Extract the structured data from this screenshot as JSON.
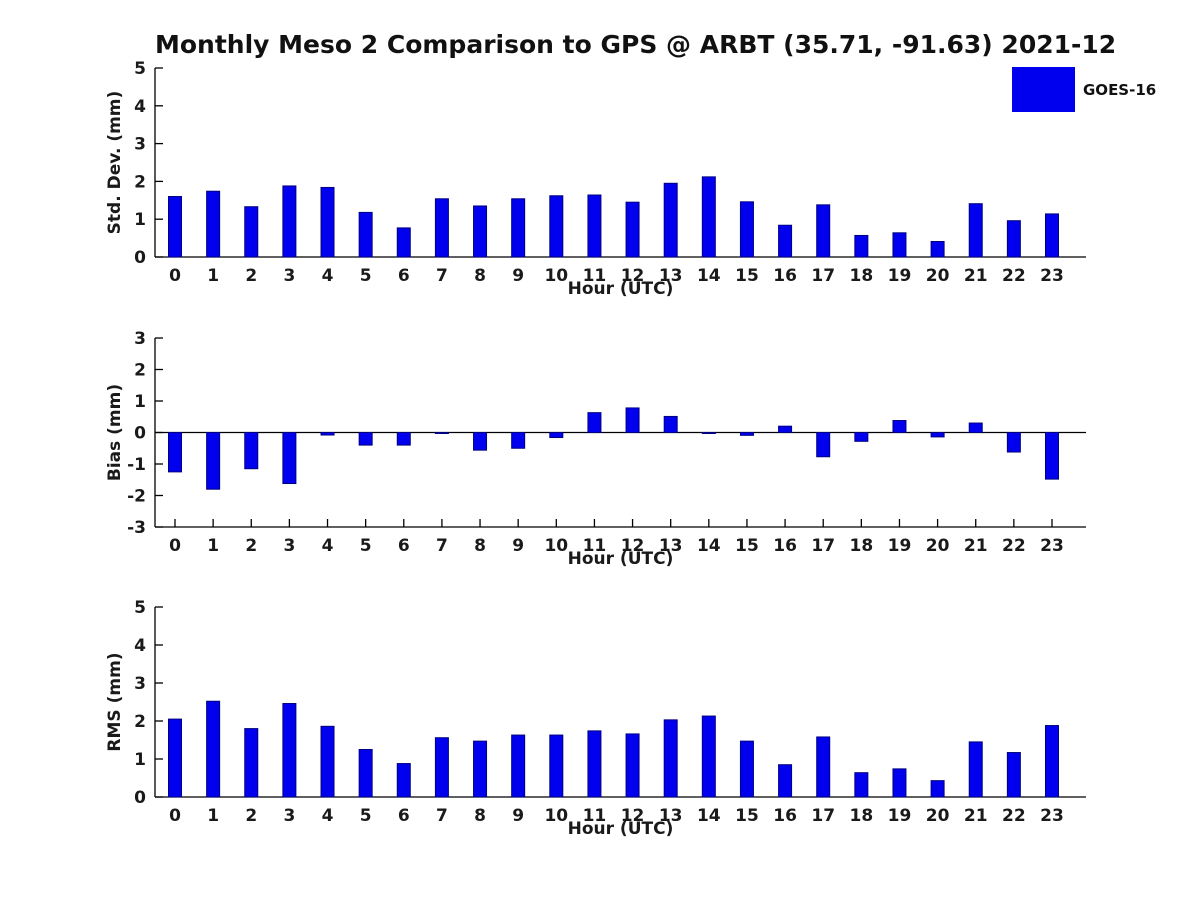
{
  "figure": {
    "title": "Monthly Meso 2 Comparison to GPS @ ARBT (35.71, -91.63) 2021-12",
    "legend": [
      {
        "label": "GOES-16",
        "color": "#0000EE"
      }
    ],
    "series_fill_color": "#0000EE",
    "series_edge_color": "#000080",
    "axis_color": "#000000",
    "text_color": "#1a1a1a"
  },
  "chart_data": [
    {
      "type": "bar",
      "title": "",
      "ylabel": "Std. Dev. (mm)",
      "xlabel": "Hour (UTC)",
      "series_name": "GOES-16",
      "categories": [
        "0",
        "1",
        "2",
        "3",
        "4",
        "5",
        "6",
        "7",
        "8",
        "9",
        "10",
        "11",
        "12",
        "13",
        "14",
        "15",
        "16",
        "17",
        "18",
        "19",
        "20",
        "21",
        "22",
        "23"
      ],
      "values": [
        1.6,
        1.74,
        1.33,
        1.88,
        1.84,
        1.18,
        0.77,
        1.54,
        1.35,
        1.54,
        1.62,
        1.64,
        1.45,
        1.95,
        2.12,
        1.46,
        0.84,
        1.38,
        0.57,
        0.64,
        0.41,
        1.41,
        0.96,
        1.14
      ],
      "ylim": [
        0,
        5
      ],
      "yticks": [
        0,
        1,
        2,
        3,
        4,
        5
      ],
      "grid": false,
      "legend_position": "upper right (outside, figure level)"
    },
    {
      "type": "bar",
      "title": "",
      "ylabel": "Bias (mm)",
      "xlabel": "Hour (UTC)",
      "series_name": "GOES-16",
      "categories": [
        "0",
        "1",
        "2",
        "3",
        "4",
        "5",
        "6",
        "7",
        "8",
        "9",
        "10",
        "11",
        "12",
        "13",
        "14",
        "15",
        "16",
        "17",
        "18",
        "19",
        "20",
        "21",
        "22",
        "23"
      ],
      "values": [
        -1.25,
        -1.8,
        -1.15,
        -1.62,
        -0.08,
        -0.4,
        -0.4,
        -0.03,
        -0.56,
        -0.5,
        -0.16,
        0.63,
        0.78,
        0.51,
        -0.03,
        -0.09,
        0.2,
        -0.77,
        -0.28,
        0.38,
        -0.14,
        0.3,
        -0.62,
        -1.48
      ],
      "ylim": [
        -3,
        3
      ],
      "yticks": [
        -3,
        -2,
        -1,
        0,
        1,
        2,
        3
      ],
      "zero_line": true,
      "grid": false
    },
    {
      "type": "bar",
      "title": "",
      "ylabel": "RMS (mm)",
      "xlabel": "Hour (UTC)",
      "series_name": "GOES-16",
      "categories": [
        "0",
        "1",
        "2",
        "3",
        "4",
        "5",
        "6",
        "7",
        "8",
        "9",
        "10",
        "11",
        "12",
        "13",
        "14",
        "15",
        "16",
        "17",
        "18",
        "19",
        "20",
        "21",
        "22",
        "23"
      ],
      "values": [
        2.05,
        2.52,
        1.8,
        2.46,
        1.86,
        1.25,
        0.88,
        1.56,
        1.47,
        1.63,
        1.63,
        1.74,
        1.66,
        2.03,
        2.13,
        1.47,
        0.85,
        1.58,
        0.64,
        0.74,
        0.43,
        1.45,
        1.17,
        1.88
      ],
      "ylim": [
        0,
        5
      ],
      "yticks": [
        0,
        1,
        2,
        3,
        4,
        5
      ],
      "grid": false
    }
  ]
}
